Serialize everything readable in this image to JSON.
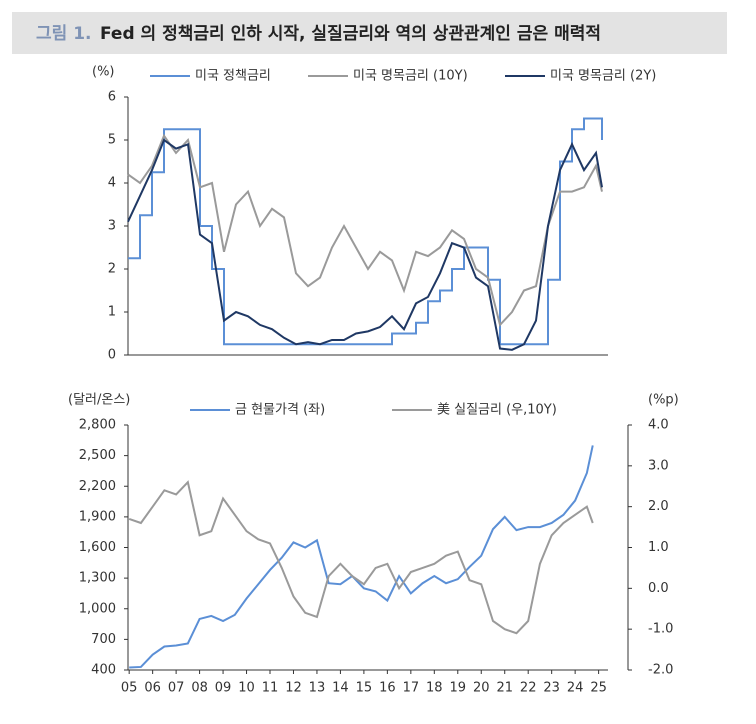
{
  "header": {
    "label": "그림 1.",
    "title": "Fed 의 정책금리 인하 시작, 실질금리와 역의 상관관계인 금은 매력적"
  },
  "chart_data": [
    {
      "type": "line",
      "ylabel": "(%)",
      "x": [
        2005,
        2005.5,
        2006,
        2006.5,
        2007,
        2007.5,
        2008,
        2008.5,
        2009,
        2009.5,
        2010,
        2010.5,
        2011,
        2011.5,
        2012,
        2012.5,
        2013,
        2013.5,
        2014,
        2014.5,
        2015,
        2015.5,
        2016,
        2016.5,
        2017,
        2017.5,
        2018,
        2018.5,
        2019,
        2019.5,
        2020,
        2020.5,
        2021,
        2021.5,
        2022,
        2022.5,
        2023,
        2023.5,
        2024,
        2024.5,
        2024.75
      ],
      "xlim": [
        2005,
        2025
      ],
      "ylim": [
        0,
        6
      ],
      "yticks": [
        0,
        1,
        2,
        3,
        4,
        5,
        6
      ],
      "series": [
        {
          "name": "미국 정책금리",
          "color": "#5b8fd6",
          "step": true,
          "values": [
            2.25,
            3.25,
            4.25,
            5.25,
            5.25,
            5.25,
            3.0,
            2.0,
            0.25,
            0.25,
            0.25,
            0.25,
            0.25,
            0.25,
            0.25,
            0.25,
            0.25,
            0.25,
            0.25,
            0.25,
            0.25,
            0.25,
            0.5,
            0.5,
            0.75,
            1.25,
            1.5,
            2.0,
            2.5,
            2.5,
            1.75,
            0.25,
            0.25,
            0.25,
            0.25,
            1.75,
            4.5,
            5.25,
            5.5,
            5.5,
            5.0
          ]
        },
        {
          "name": "미국 명목금리 (10Y)",
          "color": "#9a9a9a",
          "values": [
            4.2,
            4.0,
            4.4,
            5.1,
            4.7,
            5.0,
            3.9,
            4.0,
            2.4,
            3.5,
            3.8,
            3.0,
            3.4,
            3.2,
            1.9,
            1.6,
            1.8,
            2.5,
            3.0,
            2.5,
            2.0,
            2.4,
            2.2,
            1.5,
            2.4,
            2.3,
            2.5,
            2.9,
            2.7,
            2.0,
            1.8,
            0.7,
            1.0,
            1.5,
            1.6,
            3.0,
            3.8,
            3.8,
            3.9,
            4.4,
            3.8
          ]
        },
        {
          "name": "미국 명목금리 (2Y)",
          "color": "#1f3864",
          "values": [
            3.1,
            3.7,
            4.3,
            5.0,
            4.8,
            4.9,
            2.8,
            2.6,
            0.8,
            1.0,
            0.9,
            0.7,
            0.6,
            0.4,
            0.25,
            0.3,
            0.25,
            0.35,
            0.35,
            0.5,
            0.55,
            0.65,
            0.9,
            0.6,
            1.2,
            1.35,
            1.9,
            2.6,
            2.5,
            1.8,
            1.6,
            0.15,
            0.12,
            0.25,
            0.8,
            3.0,
            4.3,
            4.9,
            4.3,
            4.7,
            3.9
          ]
        }
      ]
    },
    {
      "type": "line",
      "ylabel": "(달러/온스)",
      "y2label": "(%p)",
      "x": [
        2005,
        2005.5,
        2006,
        2006.5,
        2007,
        2007.5,
        2008,
        2008.5,
        2009,
        2009.5,
        2010,
        2010.5,
        2011,
        2011.5,
        2012,
        2012.5,
        2013,
        2013.5,
        2014,
        2014.5,
        2015,
        2015.5,
        2016,
        2016.5,
        2017,
        2017.5,
        2018,
        2018.5,
        2019,
        2019.5,
        2020,
        2020.5,
        2021,
        2021.5,
        2022,
        2022.5,
        2023,
        2023.5,
        2024,
        2024.5,
        2024.75
      ],
      "xlim": [
        2004.95,
        2025.4
      ],
      "xticks": [
        {
          "value": 2005,
          "label": "05"
        },
        {
          "value": 2006,
          "label": "06"
        },
        {
          "value": 2007,
          "label": "07"
        },
        {
          "value": 2008,
          "label": "08"
        },
        {
          "value": 2009,
          "label": "09"
        },
        {
          "value": 2010,
          "label": "10"
        },
        {
          "value": 2011,
          "label": "11"
        },
        {
          "value": 2012,
          "label": "12"
        },
        {
          "value": 2013,
          "label": "13"
        },
        {
          "value": 2014,
          "label": "14"
        },
        {
          "value": 2015,
          "label": "15"
        },
        {
          "value": 2016,
          "label": "16"
        },
        {
          "value": 2017,
          "label": "17"
        },
        {
          "value": 2018,
          "label": "18"
        },
        {
          "value": 2019,
          "label": "19"
        },
        {
          "value": 2020,
          "label": "20"
        },
        {
          "value": 2021,
          "label": "21"
        },
        {
          "value": 2022,
          "label": "22"
        },
        {
          "value": 2023,
          "label": "23"
        },
        {
          "value": 2024,
          "label": "24"
        },
        {
          "value": 2025,
          "label": "25"
        }
      ],
      "ylim": [
        400,
        2800
      ],
      "yticks": [
        400,
        700,
        {
          "value": 1000,
          "label": "1,000"
        },
        {
          "value": 1300,
          "label": "1,300"
        },
        {
          "value": 1600,
          "label": "1,600"
        },
        {
          "value": 1900,
          "label": "1,900"
        },
        {
          "value": 2200,
          "label": "2,200"
        },
        {
          "value": 2500,
          "label": "2,500"
        },
        {
          "value": 2800,
          "label": "2,800"
        }
      ],
      "y2lim": [
        -2,
        4
      ],
      "y2ticks": [
        {
          "value": -2,
          "label": "-2.0"
        },
        {
          "value": -1,
          "label": "-1.0"
        },
        {
          "value": 0,
          "label": "0.0"
        },
        {
          "value": 1,
          "label": "1.0"
        },
        {
          "value": 2,
          "label": "2.0"
        },
        {
          "value": 3,
          "label": "3.0"
        },
        {
          "value": 4,
          "label": "4.0"
        }
      ],
      "series": [
        {
          "name": "금 현물가격 (좌)",
          "color": "#5b8fd6",
          "values": [
            425,
            430,
            550,
            630,
            640,
            660,
            900,
            930,
            880,
            940,
            1100,
            1240,
            1380,
            1500,
            1650,
            1600,
            1670,
            1250,
            1240,
            1320,
            1200,
            1170,
            1080,
            1320,
            1150,
            1250,
            1320,
            1250,
            1290,
            1410,
            1520,
            1780,
            1900,
            1770,
            1800,
            1800,
            1840,
            1920,
            2060,
            2330,
            2600
          ]
        },
        {
          "name": "美 실질금리 (우,10Y)",
          "color": "#9a9a9a",
          "axis": "y2",
          "values": [
            1.7,
            1.6,
            2.0,
            2.4,
            2.3,
            2.6,
            1.3,
            1.4,
            2.2,
            1.8,
            1.4,
            1.2,
            1.1,
            0.5,
            -0.2,
            -0.6,
            -0.7,
            0.3,
            0.6,
            0.3,
            0.1,
            0.5,
            0.6,
            0.0,
            0.4,
            0.5,
            0.6,
            0.8,
            0.9,
            0.2,
            0.1,
            -0.8,
            -1.0,
            -1.1,
            -0.8,
            0.6,
            1.3,
            1.6,
            1.8,
            2.0,
            1.6
          ]
        }
      ]
    }
  ]
}
